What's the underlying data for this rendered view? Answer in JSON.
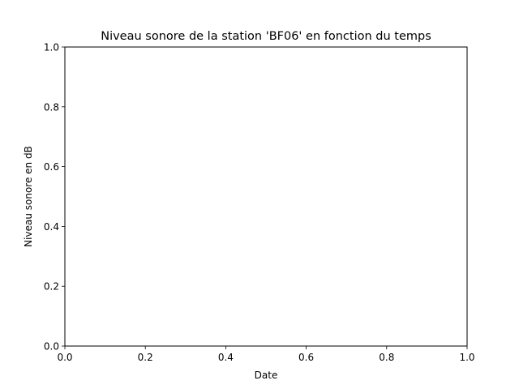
{
  "chart_data": {
    "type": "line",
    "title": "Niveau sonore de la station 'BF06' en fonction du temps",
    "xlabel": "Date",
    "ylabel": "Niveau sonore en dB",
    "xlim": [
      0.0,
      1.0
    ],
    "ylim": [
      0.0,
      1.0
    ],
    "x_ticks": [
      "0.0",
      "0.2",
      "0.4",
      "0.6",
      "0.8",
      "1.0"
    ],
    "y_ticks": [
      "0.0",
      "0.2",
      "0.4",
      "0.6",
      "0.8",
      "1.0"
    ],
    "series": [],
    "grid": false,
    "legend": "none"
  }
}
